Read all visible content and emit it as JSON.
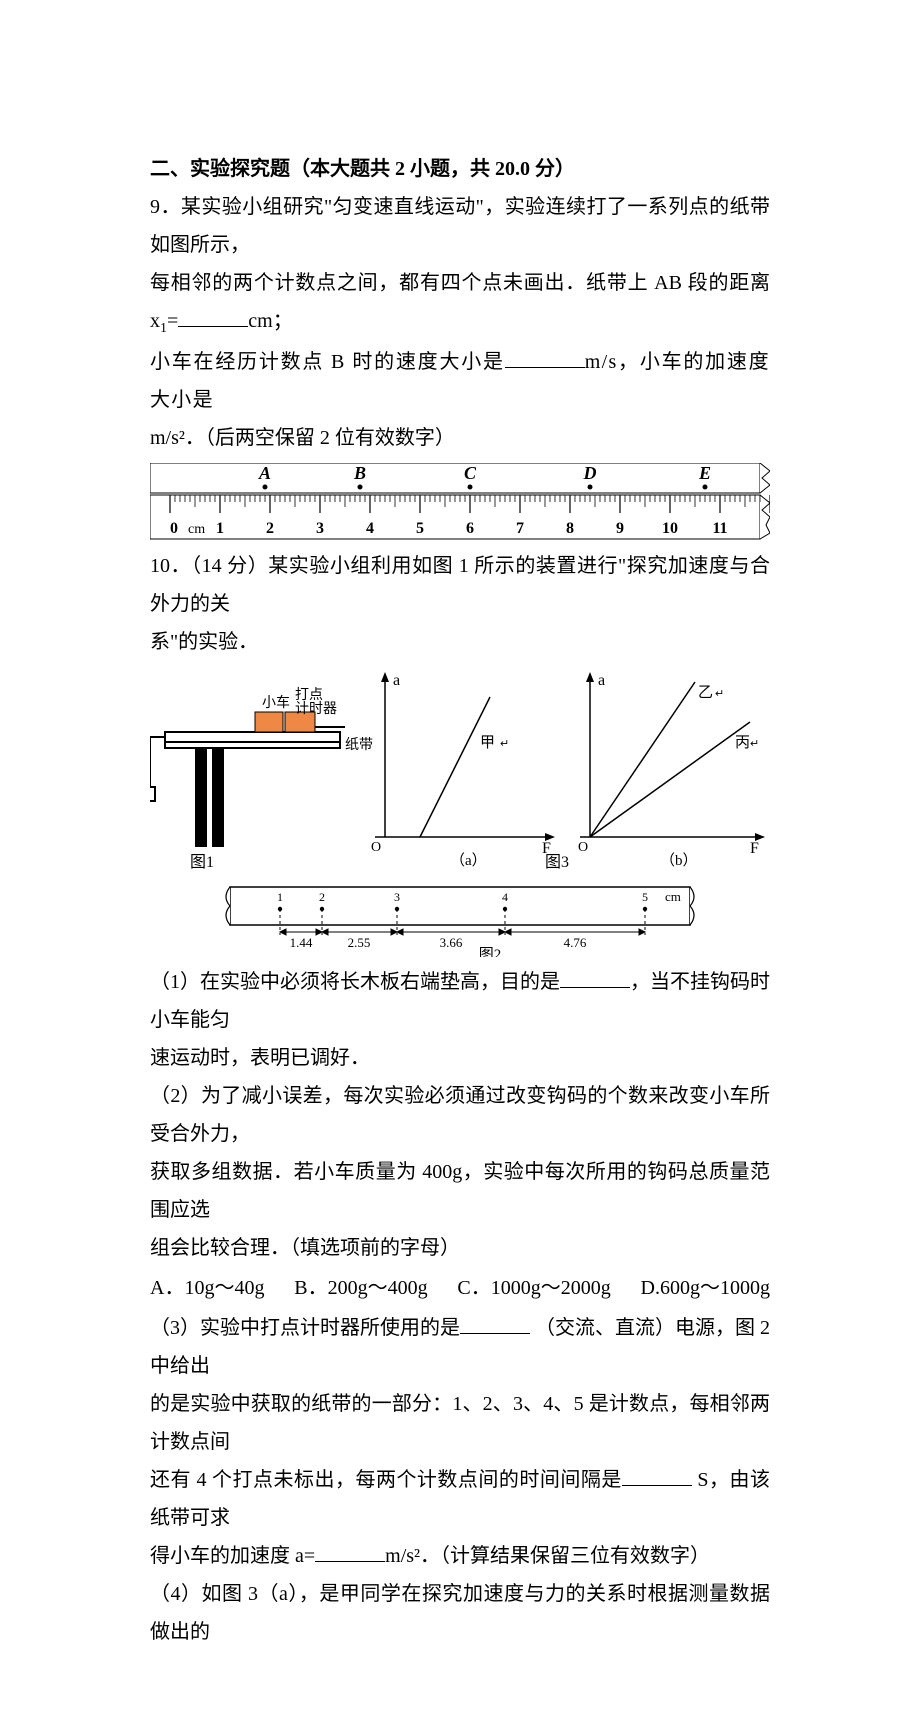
{
  "section_title": "二、实验探究题（本大题共 2 小题，共 20.0 分）",
  "q9": {
    "num": "9．",
    "line1a": "某实验小组研究\"匀变速直线运动\"，实验连续打了一系列点的纸带如图所示，",
    "line2a": "每相邻的两个计数点之间，都有四个点未画出．纸带上 AB 段的距离 x",
    "line2b": "1",
    "line2c": "=",
    "line2d": "cm；",
    "line3a": "小车在经历计数点 B 时的速度大小是",
    "line3b": "m/s，小车的加速度大小是",
    "line4": "m/s²．（后两空保留 2 位有效数字）",
    "ruler": {
      "labels": [
        "A",
        "B",
        "C",
        "D",
        "E"
      ],
      "scale_start": "0",
      "unit": "cm",
      "ticks": [
        "1",
        "2",
        "3",
        "4",
        "5",
        "6",
        "7",
        "8",
        "9",
        "10",
        "11"
      ]
    }
  },
  "q10": {
    "num": "10．",
    "head": "（14 分）某实验小组利用如图 1 所示的装置进行\"探究加速度与合外力的关",
    "head2": "系\"的实验．",
    "fig1_labels": {
      "car": "小车",
      "timer": "打点\n计时器",
      "tape": "纸带",
      "fig1": "图1",
      "fig2": "图2",
      "fig3": "图3",
      "Z": "乙",
      "B": "丙",
      "A": "甲",
      "a": "a",
      "F": "F",
      "O": "O",
      "cm": "cm"
    },
    "tape_vals": [
      "1.44",
      "2.55",
      "3.66",
      "4.76"
    ],
    "tape_pts": [
      "1",
      "2",
      "3",
      "4",
      "5"
    ],
    "p1a": "（1）在实验中必须将长木板右端垫高，目的是",
    "p1b": "，当不挂钩码时小车能匀",
    "p1c": "速运动时，表明已调好．",
    "p2a": "（2）为了减小误差，每次实验必须通过改变钩码的个数来改变小车所受合外力，",
    "p2b": "获取多组数据．若小车质量为 400g，实验中每次所用的钩码总质量范围应选",
    "p2c": "组会比较合理．（填选项前的字母）",
    "opts": {
      "A": "A．10g～40g",
      "B": "B．200g～400g",
      "C": "C．1000g～2000g",
      "D": "D.600g～1000g"
    },
    "p3a": "（3）实验中打点计时器所使用的是",
    "p3b": "（交流、直流）电源，图 2 中给出",
    "p3c": "的是实验中获取的纸带的一部分：1、2、3、4、5 是计数点，每相邻两计数点间",
    "p3d": "还有 4 个打点未标出，每两个计数点间的时间间隔是",
    "p3e": " S，由该纸带可求",
    "p3f": "得小车的加速度 a=",
    "p3g": "m/s²．（计算结果保留三位有效数字）",
    "p4": "（4）如图 3（a），是甲同学在探究加速度与力的关系时根据测量数据做出的"
  },
  "colors": {
    "text": "#000000",
    "bg": "#ffffff",
    "axis": "#000000",
    "gray": "#7a7a7a",
    "lightgray": "#b8b8b8"
  }
}
